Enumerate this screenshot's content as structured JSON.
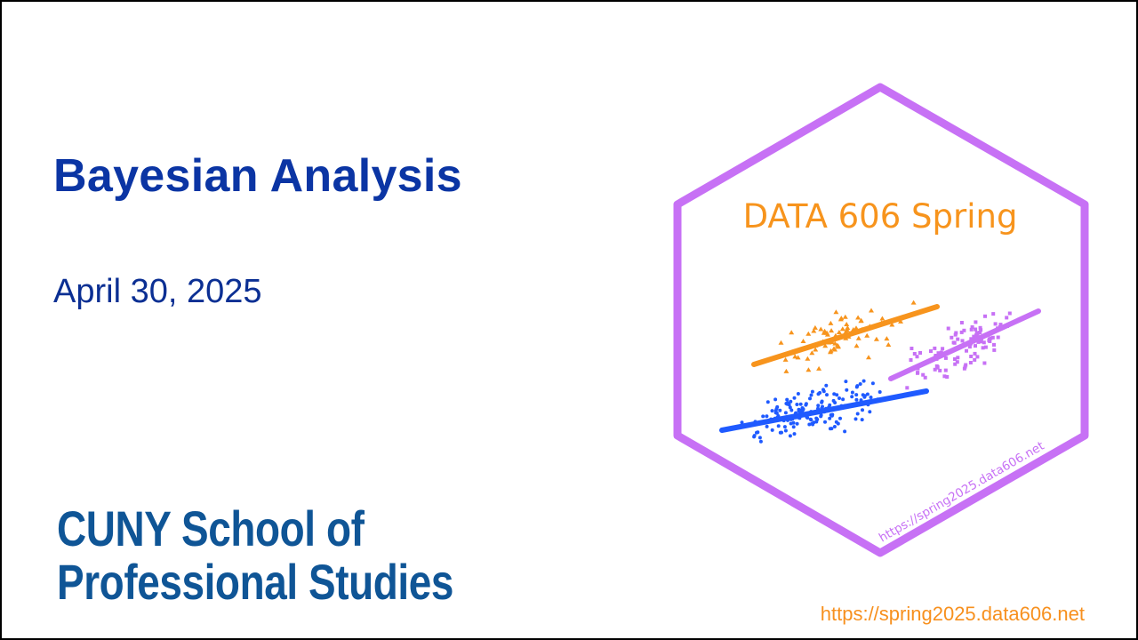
{
  "slide": {
    "title": "Bayesian Analysis",
    "date": "April 30, 2025",
    "org_line1": "CUNY School of",
    "org_line2": "Professional Studies",
    "footer_url": "https://spring2025.data606.net"
  },
  "logo": {
    "heading": "DATA 606 Spring",
    "side_url": "https://spring2025.data606.net",
    "colors": {
      "hex": "#c771f5",
      "orange": "#f7941d",
      "purple": "#c771f5",
      "blue": "#1f5aff"
    },
    "icon": "hex-sticker-scatterplot"
  },
  "colors": {
    "title": "#0b35a4",
    "org": "#0f5596",
    "link": "#f7901e"
  }
}
